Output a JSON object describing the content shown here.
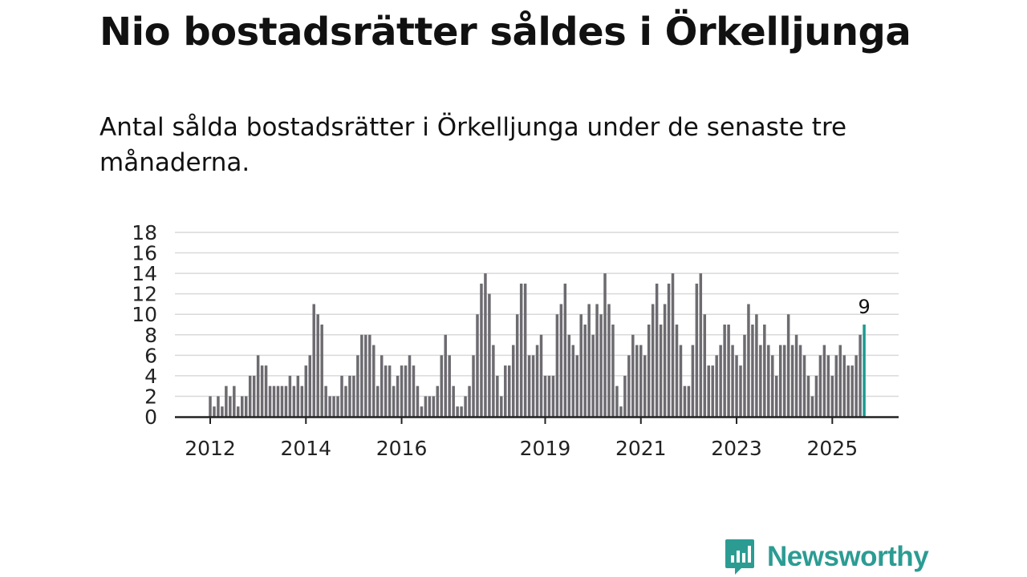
{
  "title": "Nio bostadsrätter såldes i Örkelljunga",
  "subtitle": "Antal sålda bostadsrätter i Örkelljunga under de senaste tre månaderna.",
  "brand": {
    "name": "Newsworthy",
    "icon": "newsworthy-logo-icon",
    "color": "#2c9c93"
  },
  "colors": {
    "bar": "#6d6b70",
    "highlight": "#1b9a90",
    "grid": "#d9d9d9",
    "axis": "#222222"
  },
  "chart_data": {
    "type": "bar",
    "title": "Nio bostadsrätter såldes i Örkelljunga",
    "xlabel": "",
    "ylabel": "",
    "ylim": [
      0,
      18
    ],
    "yticks": [
      0,
      2,
      4,
      6,
      8,
      10,
      12,
      14,
      16,
      18
    ],
    "grid": true,
    "start": {
      "year": 2012,
      "month": 1
    },
    "xtick_labels": [
      "2012",
      "2014",
      "2016",
      "2019",
      "2021",
      "2023",
      "2025"
    ],
    "series": [
      {
        "name": "Sålda bostadsrätter",
        "values": [
          2,
          1,
          2,
          1,
          3,
          2,
          3,
          1,
          2,
          2,
          4,
          4,
          6,
          5,
          5,
          3,
          3,
          3,
          3,
          3,
          4,
          3,
          4,
          3,
          5,
          6,
          11,
          10,
          9,
          3,
          2,
          2,
          2,
          4,
          3,
          4,
          4,
          6,
          8,
          8,
          8,
          7,
          3,
          6,
          5,
          5,
          3,
          4,
          5,
          5,
          6,
          5,
          3,
          1,
          2,
          2,
          2,
          3,
          6,
          8,
          6,
          3,
          1,
          1,
          2,
          3,
          6,
          10,
          13,
          14,
          12,
          7,
          4,
          2,
          5,
          5,
          7,
          10,
          13,
          13,
          6,
          6,
          7,
          8,
          4,
          4,
          4,
          10,
          11,
          13,
          8,
          7,
          6,
          10,
          9,
          11,
          8,
          11,
          10,
          14,
          11,
          9,
          3,
          1,
          4,
          6,
          8,
          7,
          7,
          6,
          9,
          11,
          13,
          9,
          11,
          13,
          14,
          9,
          7,
          3,
          3,
          7,
          13,
          14,
          10,
          5,
          5,
          6,
          7,
          9,
          9,
          7,
          6,
          5,
          8,
          11,
          9,
          10,
          7,
          9,
          7,
          6,
          4,
          7,
          7,
          10,
          7,
          8,
          7,
          6,
          4,
          2,
          4,
          6,
          7,
          6,
          4,
          6,
          7,
          6,
          5,
          5,
          6,
          8,
          9
        ]
      }
    ],
    "annotations": [
      {
        "label": "9",
        "target": "last"
      }
    ]
  }
}
